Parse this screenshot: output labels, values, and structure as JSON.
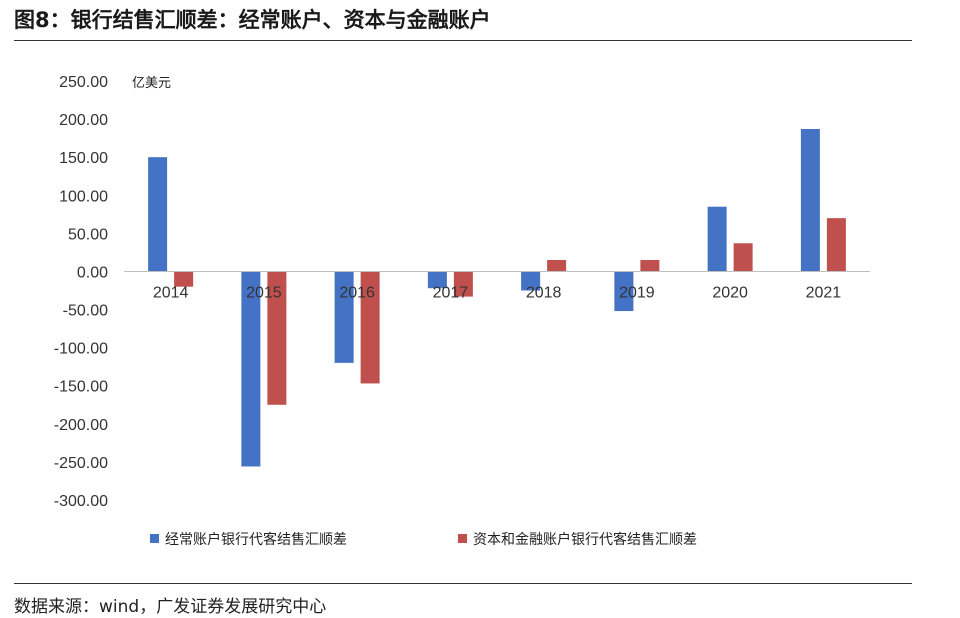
{
  "page": {
    "title": "图8：银行结售汇顺差：经常账户、资本与金融账户",
    "source": "数据来源：wind，广发证券发展研究中心"
  },
  "chart_data": {
    "type": "bar",
    "unit_label": "亿美元",
    "categories": [
      "2014",
      "2015",
      "2016",
      "2017",
      "2018",
      "2019",
      "2020",
      "2021"
    ],
    "series": [
      {
        "name": "经常账户银行代客结售汇顺差",
        "color": "#4472C4",
        "values": [
          150,
          -256,
          -120,
          -22,
          -25,
          -52,
          85,
          187
        ]
      },
      {
        "name": "资本和金融账户银行代客结售汇顺差",
        "color": "#C0504D",
        "values": [
          -20,
          -175,
          -147,
          -33,
          15,
          15,
          37,
          70
        ]
      }
    ],
    "ylim": [
      -300,
      250
    ],
    "yticks": [
      250,
      200,
      150,
      100,
      50,
      0,
      -50,
      -100,
      -150,
      -200,
      -250,
      -300
    ],
    "ytick_labels": [
      "250.00",
      "200.00",
      "150.00",
      "100.00",
      "50.00",
      "0.00",
      "-50.00",
      "-100.00",
      "-150.00",
      "-200.00",
      "-250.00",
      "-300.00"
    ],
    "grid": false,
    "legend_position": "bottom"
  }
}
